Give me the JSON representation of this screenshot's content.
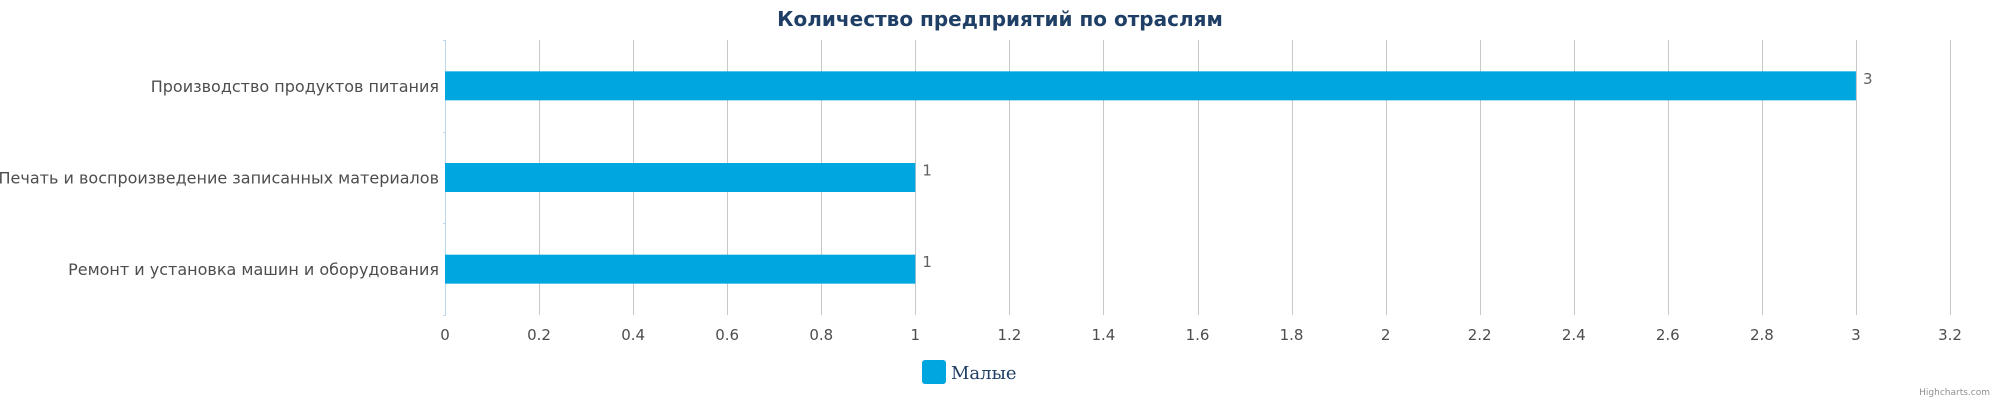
{
  "chart_data": {
    "type": "bar",
    "orientation": "horizontal",
    "title": "Количество предприятий по отраслям",
    "categories": [
      "Производство продуктов питания",
      "Печать и воспроизведение записанных материалов",
      "Ремонт и установка машин и оборудования"
    ],
    "series": [
      {
        "name": "Малые",
        "values": [
          3,
          1,
          1
        ],
        "color": "#00a6e0"
      }
    ],
    "xlim": [
      0,
      3.2
    ],
    "xticks": [
      "0",
      "0.2",
      "0.4",
      "0.6",
      "0.8",
      "1",
      "1.2",
      "1.4",
      "1.6",
      "1.8",
      "2",
      "2.2",
      "2.4",
      "2.6",
      "2.8",
      "3",
      "3.2"
    ],
    "xlabel": "",
    "ylabel": "",
    "grid": "vertical",
    "legend": "bottom-center",
    "credits": "Highcharts.com"
  },
  "colors": {
    "title": "#1f3f66",
    "legend_text": "#1f3f66",
    "gridline": "#c8c8c8",
    "axis_line": "#bcd9f0"
  }
}
